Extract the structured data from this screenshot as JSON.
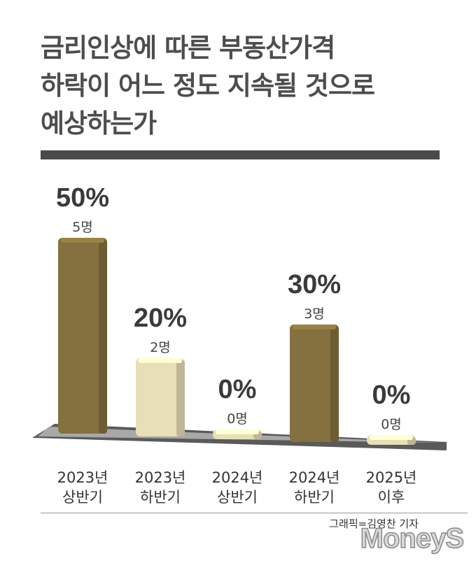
{
  "title": {
    "lines": [
      "금리인상에 따른 부동산가격",
      "하락이 어느 정도 지속될 것으로",
      "예상하는가"
    ]
  },
  "chart_data": {
    "type": "bar",
    "categories": [
      [
        "2023년",
        "상반기"
      ],
      [
        "2023년",
        "하반기"
      ],
      [
        "2024년",
        "상반기"
      ],
      [
        "2024년",
        "하반기"
      ],
      [
        "2025년",
        "이후"
      ]
    ],
    "values": [
      50,
      20,
      0,
      30,
      0
    ],
    "value_labels": [
      "50%",
      "20%",
      "0%",
      "30%",
      "0%"
    ],
    "count_labels": [
      "5명",
      "2명",
      "0명",
      "3명",
      "0명"
    ],
    "ylim": [
      0,
      50
    ],
    "colors": {
      "highlight": "#85713f",
      "normal": "#e6dfb8"
    },
    "highlight_index": [
      0,
      3
    ]
  },
  "credit": "그래픽=김영찬 기자",
  "logo": "MoneyS"
}
